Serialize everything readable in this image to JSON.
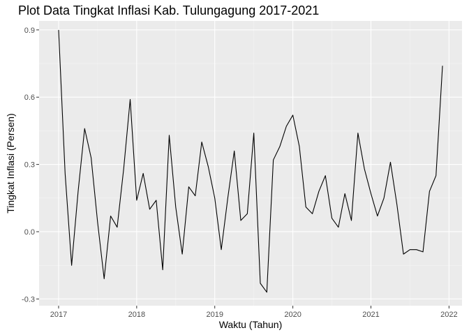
{
  "chart_data": {
    "type": "line",
    "title": "Plot Data Tingkat Inflasi Kab. Tulungagung 2017-2021",
    "xlabel": "Waktu (Tahun)",
    "ylabel": "Tingkat Inflasi (Persen)",
    "x_ticks": [
      "2017",
      "2018",
      "2019",
      "2020",
      "2021",
      "2022"
    ],
    "y_ticks": [
      "-0.3",
      "0.0",
      "0.3",
      "0.6",
      "0.9"
    ],
    "x_start": "2017-01",
    "x_end": "2021-12",
    "xlim": [
      "2016-10",
      "2022-03"
    ],
    "ylim": [
      -0.33,
      0.94
    ],
    "grid": true,
    "series": [
      {
        "values": [
          0.9,
          0.26,
          -0.15,
          0.18,
          0.46,
          0.33,
          0.04,
          -0.21,
          0.07,
          0.02,
          0.28,
          0.59,
          0.14,
          0.26,
          0.1,
          0.14,
          -0.17,
          0.43,
          0.11,
          -0.1,
          0.2,
          0.16,
          0.4,
          0.29,
          0.15,
          -0.08,
          0.15,
          0.36,
          0.05,
          0.08,
          0.44,
          -0.23,
          -0.27,
          0.32,
          0.38,
          0.47,
          0.52,
          0.38,
          0.11,
          0.08,
          0.18,
          0.25,
          0.06,
          0.02,
          0.17,
          0.05,
          0.44,
          0.28,
          0.17,
          0.07,
          0.15,
          0.31,
          0.12,
          -0.1,
          -0.08,
          -0.08,
          -0.09,
          0.18,
          0.25,
          0.74
        ],
        "color": "#000000"
      }
    ],
    "colors": {
      "panel": "#ebebeb",
      "grid_major": "#ffffff",
      "grid_minor": "#f5f5f5",
      "text": "#4d4d4d",
      "line": "#000000"
    }
  }
}
